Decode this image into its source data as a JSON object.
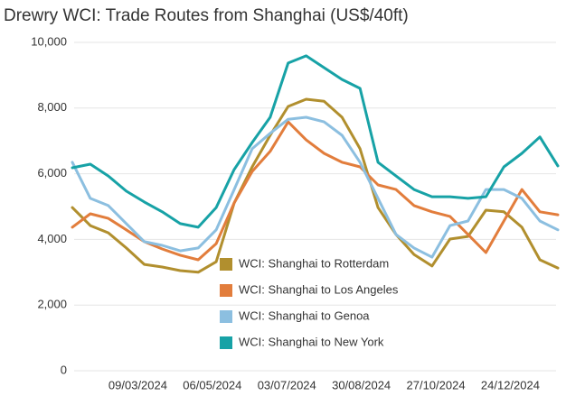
{
  "chart_data": {
    "type": "line",
    "title": "Drewry WCI: Trade Routes from Shanghai (US$/40ft)",
    "x": [
      "18/01/2024",
      "01/02/2024",
      "15/02/2024",
      "29/02/2024",
      "14/03/2024",
      "28/03/2024",
      "11/04/2024",
      "25/04/2024",
      "09/05/2024",
      "23/05/2024",
      "06/06/2024",
      "20/06/2024",
      "04/07/2024",
      "18/07/2024",
      "01/08/2024",
      "15/08/2024",
      "29/08/2024",
      "12/09/2024",
      "26/09/2024",
      "10/10/2024",
      "24/10/2024",
      "07/11/2024",
      "21/11/2024",
      "05/12/2024",
      "19/12/2024",
      "02/01/2025",
      "16/01/2025",
      "30/01/2025"
    ],
    "series": [
      {
        "name": "WCI: Shanghai to Rotterdam",
        "color": "#b18f2e",
        "values": [
          4970,
          4420,
          4200,
          3740,
          3240,
          3160,
          3050,
          3000,
          3320,
          5110,
          6210,
          7170,
          8050,
          8270,
          8210,
          7720,
          6760,
          4970,
          4150,
          3540,
          3190,
          4010,
          4090,
          4890,
          4840,
          4370,
          3380,
          3130
        ]
      },
      {
        "name": "WCI: Shanghai to Los Angeles",
        "color": "#e27d3c",
        "values": [
          4370,
          4780,
          4640,
          4290,
          3930,
          3710,
          3520,
          3380,
          3870,
          5110,
          6070,
          6680,
          7580,
          7030,
          6620,
          6350,
          6210,
          5660,
          5520,
          5030,
          4840,
          4700,
          4150,
          3600,
          4560,
          5520,
          4840,
          4750
        ]
      },
      {
        "name": "WCI: Shanghai to Genoa",
        "color": "#8cbfe0",
        "values": [
          6350,
          5250,
          5030,
          4480,
          3930,
          3820,
          3650,
          3740,
          4290,
          5520,
          6760,
          7230,
          7660,
          7720,
          7580,
          7170,
          6350,
          5250,
          4150,
          3740,
          3460,
          4420,
          4560,
          5520,
          5520,
          5250,
          4560,
          4290
        ]
      },
      {
        "name": "WCI: Shanghai to New York",
        "color": "#17a2a6",
        "values": [
          6180,
          6290,
          5930,
          5470,
          5140,
          4840,
          4480,
          4370,
          4970,
          6130,
          6950,
          7720,
          9370,
          9590,
          9230,
          8870,
          8600,
          6350,
          5930,
          5520,
          5300,
          5300,
          5250,
          5300,
          6210,
          6620,
          7120,
          6240
        ]
      }
    ],
    "xlim": [
      "18/01/2024",
      "30/01/2025"
    ],
    "xticks": [
      "09/03/2024",
      "06/05/2024",
      "03/07/2024",
      "30/08/2024",
      "27/10/2024",
      "24/12/2024"
    ],
    "ylim": [
      0,
      10000
    ],
    "yticks": [
      0,
      {
        "value": 2000,
        "label": "2,000"
      },
      {
        "value": 4000,
        "label": "4,000"
      },
      {
        "value": 6000,
        "label": "6,000"
      },
      {
        "value": 8000,
        "label": "8,000"
      },
      {
        "value": 10000,
        "label": "10,000"
      }
    ],
    "grid": true
  }
}
